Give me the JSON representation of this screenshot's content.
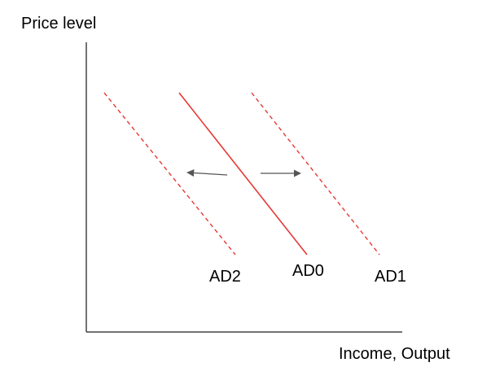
{
  "axes": {
    "y_label": "Price level",
    "x_label": "Income, Output"
  },
  "curves": [
    {
      "label": "AD2",
      "style": "dashed",
      "color": "#e53935"
    },
    {
      "label": "AD0",
      "style": "solid",
      "color": "#e53935"
    },
    {
      "label": "AD1",
      "style": "dashed",
      "color": "#e53935"
    }
  ],
  "arrows": [
    {
      "direction": "left",
      "meaning": "shift from AD0 to AD2"
    },
    {
      "direction": "right",
      "meaning": "shift from AD0 to AD1"
    }
  ],
  "colors": {
    "curve": "#e53935",
    "axis": "#444444",
    "arrow": "#555555",
    "text": "#000000"
  }
}
